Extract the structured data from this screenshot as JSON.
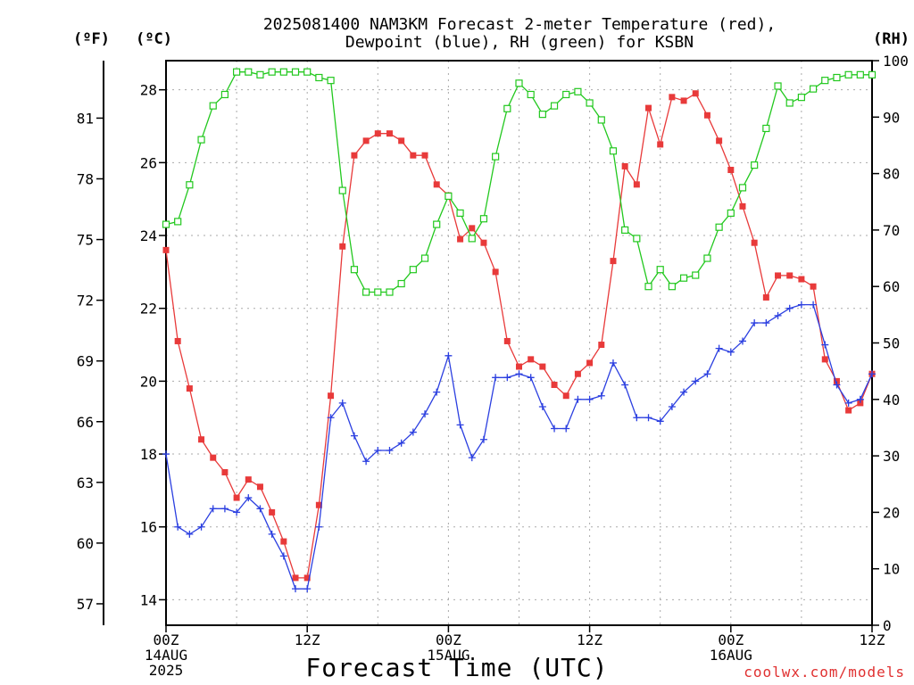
{
  "title_line1": "2025081400 NAM3KM Forecast 2-meter Temperature (red),",
  "title_line2": "Dewpoint (blue), RH (green) for KSBN",
  "unit_f": "(ºF)",
  "unit_c": "(ºC)",
  "unit_rh": "(RH)",
  "xlabel": "Forecast Time (UTC)",
  "credit": "coolwx.com/models",
  "chart_data": {
    "type": "line",
    "x_hours": [
      0,
      1,
      2,
      3,
      4,
      5,
      6,
      7,
      8,
      9,
      10,
      11,
      12,
      13,
      14,
      15,
      16,
      17,
      18,
      19,
      20,
      21,
      22,
      23,
      24,
      25,
      26,
      27,
      28,
      29,
      30,
      31,
      32,
      33,
      34,
      35,
      36,
      37,
      38,
      39,
      40,
      41,
      42,
      43,
      44,
      45,
      46,
      47,
      48,
      49,
      50,
      51,
      52,
      53,
      54,
      55,
      56,
      57,
      58,
      59,
      60
    ],
    "x_tick_labels": [
      {
        "hour": 0,
        "lines": [
          "00Z",
          "14AUG",
          "2025"
        ]
      },
      {
        "hour": 12,
        "lines": [
          "12Z"
        ]
      },
      {
        "hour": 24,
        "lines": [
          "00Z",
          "15AUG"
        ]
      },
      {
        "hour": 36,
        "lines": [
          "12Z"
        ]
      },
      {
        "hour": 48,
        "lines": [
          "00Z",
          "16AUG"
        ]
      },
      {
        "hour": 60,
        "lines": [
          "12Z"
        ]
      }
    ],
    "xlim": [
      0,
      60
    ],
    "ylim_c": [
      13.3,
      28.8
    ],
    "yticks_c": [
      14,
      16,
      18,
      20,
      22,
      24,
      26,
      28
    ],
    "yticks_f": [
      57,
      60,
      63,
      66,
      69,
      72,
      75,
      78,
      81
    ],
    "ylim_rh": [
      0,
      100
    ],
    "yticks_rh": [
      0,
      10,
      20,
      30,
      40,
      50,
      60,
      70,
      80,
      90,
      100
    ],
    "grid": true,
    "series": [
      {
        "axis": "c",
        "color": "#e83a3a",
        "marker": "filled-square",
        "values": [
          23.6,
          21.1,
          19.8,
          18.4,
          17.9,
          17.5,
          16.8,
          17.3,
          17.1,
          16.4,
          15.6,
          14.6,
          14.6,
          16.6,
          19.6,
          23.7,
          26.2,
          26.6,
          26.8,
          26.8,
          26.6,
          26.2,
          26.2,
          25.4,
          25.1,
          23.9,
          24.2,
          23.8,
          23.0,
          21.1,
          20.4,
          20.6,
          20.4,
          19.9,
          19.6,
          20.2,
          20.5,
          21.0,
          23.3,
          25.9,
          25.4,
          27.5,
          26.5,
          27.8,
          27.7,
          27.9,
          27.3,
          26.6,
          25.8,
          24.8,
          23.8,
          22.3,
          22.9,
          22.9,
          22.8,
          22.6,
          20.6,
          20.0,
          19.2,
          19.4,
          20.2
        ]
      },
      {
        "axis": "c",
        "color": "#2b3fe0",
        "marker": "plus",
        "values": [
          18.0,
          16.0,
          15.8,
          16.0,
          16.5,
          16.5,
          16.4,
          16.8,
          16.5,
          15.8,
          15.2,
          14.3,
          14.3,
          16.0,
          19.0,
          19.4,
          18.5,
          17.8,
          18.1,
          18.1,
          18.3,
          18.6,
          19.1,
          19.7,
          20.7,
          18.8,
          17.9,
          18.4,
          20.1,
          20.1,
          20.2,
          20.1,
          19.3,
          18.7,
          18.7,
          19.5,
          19.5,
          19.6,
          20.5,
          19.9,
          19.0,
          19.0,
          18.9,
          19.3,
          19.7,
          20.0,
          20.2,
          20.9,
          20.8,
          21.1,
          21.6,
          21.6,
          21.8,
          22.0,
          22.1,
          22.1,
          21.0,
          19.9,
          19.4,
          19.5,
          20.2
        ]
      },
      {
        "axis": "rh",
        "color": "#22c81e",
        "marker": "open-square",
        "values": [
          71,
          71.5,
          78,
          86,
          92,
          94,
          98,
          98,
          97.5,
          98,
          98,
          98,
          98,
          97,
          96.5,
          77,
          63,
          59,
          59,
          59,
          60.5,
          63,
          65,
          71,
          76,
          73,
          68.5,
          72,
          83,
          91.5,
          96,
          94,
          90.5,
          92,
          94,
          94.5,
          92.5,
          89.5,
          84,
          70,
          68.5,
          60,
          63,
          60,
          61.5,
          62,
          65,
          70.5,
          73,
          77.5,
          81.5,
          88,
          95.5,
          92.5,
          93.5,
          95,
          96.5,
          97,
          97.5,
          97.5,
          97.5
        ]
      }
    ]
  }
}
